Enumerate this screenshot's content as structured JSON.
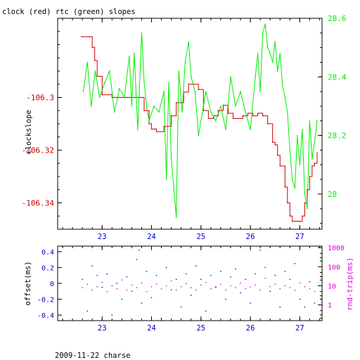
{
  "top_title": "clock (red) rtc (green) slopes",
  "bottom_caption": "2009-11-22 charse",
  "colors": {
    "clock": "#cc0000",
    "rtc": "#00ee00",
    "offset": "#0000cc",
    "rtt": "#dd00dd",
    "axis": "#000000"
  },
  "chart_data": [
    {
      "id": "slopes",
      "type": "line",
      "title": "clock (red) rtc (green) slopes",
      "xlabel": "",
      "ylabel": "clockslope",
      "xlim": [
        22.1,
        27.45
      ],
      "x_ticks": [
        23,
        24,
        25,
        26,
        27
      ],
      "x_tick_labels": [
        "23",
        "24",
        "25",
        "26",
        "27"
      ],
      "left_axis": {
        "ylim": [
          -106.35,
          -106.27
        ],
        "ticks": [
          -106.3,
          -106.32,
          -106.34
        ],
        "tick_labels": [
          "-106.3",
          "-106.32",
          "-106.34"
        ]
      },
      "right_axis": {
        "ylim": [
          27.88,
          28.6
        ],
        "ticks": [
          28,
          28.2,
          28.4,
          28.6
        ],
        "tick_labels": [
          "28",
          "28.2",
          "28.4",
          "28.6"
        ]
      },
      "series": [
        {
          "axis": "left",
          "x": [
            22.58,
            22.75,
            22.8,
            22.85,
            22.9,
            23.0,
            23.2,
            23.5,
            23.75,
            23.85,
            23.95,
            24.0,
            24.1,
            24.25,
            24.4,
            24.5,
            24.65,
            24.75,
            24.85,
            24.95,
            25.05,
            25.15,
            25.25,
            25.35,
            25.45,
            25.55,
            25.65,
            25.75,
            25.85,
            25.95,
            26.05,
            26.15,
            26.25,
            26.35,
            26.45,
            26.5,
            26.55,
            26.6,
            26.7,
            26.75,
            26.8,
            26.85,
            26.9,
            26.95,
            27.0,
            27.05,
            27.1,
            27.15,
            27.2,
            27.25,
            27.3,
            27.35
          ],
          "y": [
            -106.277,
            -106.277,
            -106.281,
            -106.286,
            -106.292,
            -106.299,
            -106.3,
            -106.3,
            -106.3,
            -106.305,
            -106.31,
            -106.312,
            -106.313,
            -106.311,
            -106.307,
            -106.302,
            -106.298,
            -106.295,
            -106.295,
            -106.297,
            -106.305,
            -106.308,
            -106.307,
            -106.305,
            -106.303,
            -106.306,
            -106.308,
            -106.308,
            -106.307,
            -106.306,
            -106.307,
            -106.306,
            -106.307,
            -106.31,
            -106.317,
            -106.318,
            -106.322,
            -106.326,
            -106.334,
            -106.34,
            -106.345,
            -106.347,
            -106.347,
            -106.347,
            -106.347,
            -106.345,
            -106.34,
            -106.335,
            -106.33,
            -106.326,
            -106.325,
            -106.321
          ]
        },
        {
          "axis": "right",
          "x": [
            22.62,
            22.7,
            22.78,
            22.86,
            22.95,
            23.05,
            23.15,
            23.25,
            23.35,
            23.45,
            23.55,
            23.6,
            23.65,
            23.72,
            23.8,
            23.85,
            23.9,
            23.95,
            24.05,
            24.15,
            24.25,
            24.3,
            24.35,
            24.4,
            24.45,
            24.5,
            24.55,
            24.62,
            24.68,
            24.75,
            24.8,
            24.88,
            24.95,
            25.05,
            25.1,
            25.2,
            25.3,
            25.4,
            25.5,
            25.6,
            25.7,
            25.8,
            25.9,
            26.0,
            26.1,
            26.15,
            26.2,
            26.25,
            26.3,
            26.35,
            26.4,
            26.45,
            26.5,
            26.55,
            26.6,
            26.65,
            26.7,
            26.75,
            26.8,
            26.85,
            26.9,
            26.95,
            27.0,
            27.05,
            27.1,
            27.15,
            27.2,
            27.25,
            27.3,
            27.35
          ],
          "y": [
            28.35,
            28.45,
            28.3,
            28.42,
            28.33,
            28.38,
            28.42,
            28.28,
            28.36,
            28.33,
            28.47,
            28.3,
            28.48,
            28.22,
            28.55,
            28.38,
            28.3,
            28.25,
            28.3,
            28.28,
            28.35,
            28.05,
            28.38,
            28.12,
            28.02,
            27.92,
            28.42,
            28.28,
            28.45,
            28.52,
            28.4,
            28.35,
            28.2,
            28.3,
            28.35,
            28.28,
            28.25,
            28.3,
            28.22,
            28.4,
            28.3,
            28.35,
            28.28,
            28.22,
            28.4,
            28.48,
            28.35,
            28.55,
            28.58,
            28.5,
            28.48,
            28.45,
            28.52,
            28.42,
            28.48,
            28.37,
            28.33,
            28.28,
            28.15,
            28.05,
            28.02,
            28.2,
            28.1,
            28.22,
            28.0,
            27.95,
            28.25,
            28.12,
            28.18,
            28.25
          ]
        }
      ]
    },
    {
      "id": "offset_rtt",
      "type": "scatter",
      "xlim": [
        22.1,
        27.45
      ],
      "x_ticks": [
        23,
        24,
        25,
        26,
        27
      ],
      "x_tick_labels": [
        "23",
        "24",
        "25",
        "26",
        "27"
      ],
      "left_axis": {
        "label": "offset(ms)",
        "ylim": [
          -0.47,
          0.47
        ],
        "ticks": [
          0.4,
          0.2,
          0,
          -0.2,
          -0.4
        ],
        "tick_labels": [
          "0.4",
          "0.2",
          "0",
          "-0.2",
          "-0.4"
        ]
      },
      "right_axis": {
        "label": "rnd-trip(ms)",
        "scale": "log",
        "ylim": [
          0.15,
          1200
        ],
        "ticks": [
          1,
          10,
          100,
          1000
        ],
        "tick_labels": [
          "1",
          "10",
          "100",
          "1000"
        ]
      },
      "series": [
        {
          "axis": "left",
          "x": [
            22.6,
            22.7,
            22.8,
            22.9,
            23.0,
            23.1,
            23.2,
            23.3,
            23.4,
            23.5,
            23.6,
            23.7,
            23.75,
            23.8,
            23.9,
            24.0,
            24.1,
            24.2,
            24.3,
            24.4,
            24.5,
            24.6,
            24.7,
            24.8,
            24.9,
            25.0,
            25.1,
            25.2,
            25.3,
            25.4,
            25.5,
            25.6,
            25.7,
            25.8,
            25.9,
            26.0,
            26.1,
            26.2,
            26.3,
            26.4,
            26.5,
            26.6,
            26.7,
            26.8,
            26.9,
            27.0,
            27.1,
            27.2,
            27.3
          ],
          "y": [
            0.05,
            -0.35,
            0.22,
            0.1,
            -0.05,
            0.12,
            -0.4,
            0.0,
            -0.2,
            0.08,
            -0.1,
            0.3,
            0.42,
            -0.25,
            0.15,
            -0.18,
            0.1,
            -0.44,
            0.2,
            -0.08,
            0.05,
            -0.3,
            0.12,
            -0.15,
            0.22,
            0.05,
            -0.35,
            0.1,
            -0.05,
            0.15,
            -0.2,
            0.08,
            0.18,
            -0.12,
            0.05,
            -0.25,
            0.12,
            0.42,
            0.2,
            -0.1,
            0.1,
            -0.3,
            0.15,
            0.05,
            0.25,
            -0.2,
            -0.3,
            0.02,
            -0.25
          ]
        },
        {
          "axis": "right",
          "x": [
            22.6,
            22.7,
            22.8,
            22.9,
            23.0,
            23.1,
            23.2,
            23.3,
            23.4,
            23.5,
            23.6,
            23.7,
            23.8,
            23.9,
            24.0,
            24.1,
            24.2,
            24.3,
            24.4,
            24.5,
            24.6,
            24.7,
            24.8,
            24.9,
            25.0,
            25.1,
            25.2,
            25.3,
            25.4,
            25.5,
            25.6,
            25.7,
            25.8,
            25.9,
            26.0,
            26.1,
            26.2,
            26.3,
            26.4,
            26.5,
            26.6,
            26.7,
            26.8,
            26.9,
            27.0,
            27.1,
            27.2,
            27.3
          ],
          "y": [
            8,
            12,
            6,
            9,
            15,
            5,
            10,
            7,
            20,
            6,
            11,
            8,
            14,
            5,
            9,
            12,
            7,
            10,
            18,
            6,
            9,
            13,
            8,
            6,
            11,
            15,
            7,
            9,
            12,
            6,
            10,
            8,
            14,
            7,
            9,
            11,
            6,
            25,
            9,
            12,
            7,
            10,
            8,
            6,
            14,
            9,
            7,
            5
          ]
        }
      ]
    }
  ]
}
